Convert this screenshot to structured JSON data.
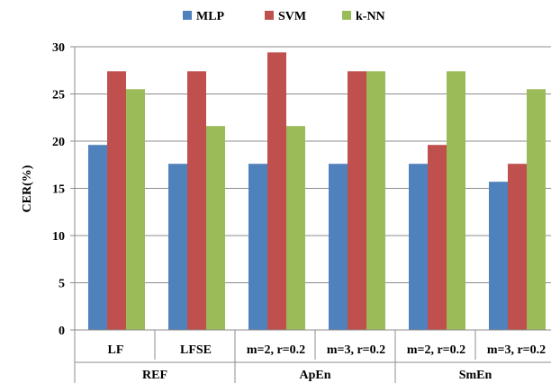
{
  "chart_data": {
    "type": "bar",
    "title": "",
    "xlabel": "",
    "ylabel": "CER(%)",
    "ylim": [
      0,
      30
    ],
    "yticks": [
      0,
      5,
      10,
      15,
      20,
      25,
      30
    ],
    "grid": true,
    "legend_position": "top",
    "categories": [
      "LF",
      "LFSE",
      "m=2, r=0.2",
      "m=3, r=0.2",
      "m=2, r=0.2",
      "m=3, r=0.2"
    ],
    "groups": [
      {
        "label": "REF",
        "categories": [
          0,
          1
        ]
      },
      {
        "label": "ApEn",
        "categories": [
          2,
          3
        ]
      },
      {
        "label": "SmEn",
        "categories": [
          4,
          5
        ]
      }
    ],
    "series": [
      {
        "name": "MLP",
        "color": "#4F81BD",
        "values": [
          19.6,
          17.6,
          17.6,
          17.6,
          17.6,
          15.7
        ]
      },
      {
        "name": "SVM",
        "color": "#C0504D",
        "values": [
          27.4,
          27.4,
          29.4,
          27.4,
          19.6,
          17.6
        ]
      },
      {
        "name": "k-NN",
        "color": "#9BBB59",
        "values": [
          25.5,
          21.6,
          21.6,
          27.4,
          27.4,
          25.5
        ]
      }
    ]
  }
}
